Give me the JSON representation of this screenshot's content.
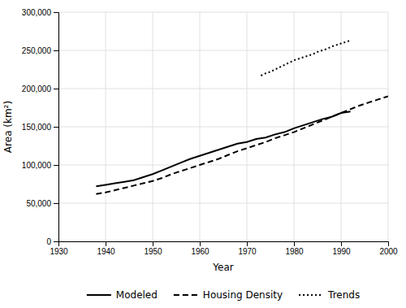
{
  "chart_data": {
    "type": "line",
    "xlabel": "Year",
    "ylabel": "Area (km²)",
    "series": [
      {
        "name": "Modeled",
        "color": "#000000",
        "line_style": "solid",
        "x": [
          1938,
          1940,
          1942,
          1944,
          1946,
          1948,
          1950,
          1952,
          1954,
          1956,
          1958,
          1960,
          1962,
          1964,
          1966,
          1968,
          1970,
          1972,
          1974,
          1976,
          1978,
          1980,
          1982,
          1984,
          1986,
          1988,
          1990,
          1992
        ],
        "values": [
          72000,
          74000,
          76000,
          78000,
          80000,
          84000,
          88000,
          93000,
          98000,
          103000,
          108000,
          112000,
          116000,
          120000,
          124000,
          128000,
          130000,
          134000,
          136000,
          140000,
          143000,
          148000,
          152000,
          156000,
          160000,
          163000,
          168000,
          170000
        ]
      },
      {
        "name": "Housing Density",
        "color": "#000000",
        "line_style": "dashed",
        "x": [
          1938,
          1940,
          1942,
          1944,
          1946,
          1948,
          1950,
          1952,
          1954,
          1956,
          1958,
          1960,
          1962,
          1964,
          1966,
          1968,
          1970,
          1972,
          1974,
          1976,
          1978,
          1980,
          1982,
          1984,
          1986,
          1988,
          1990,
          1992,
          1994,
          1996,
          1998,
          2000
        ],
        "values": [
          62000,
          64000,
          67000,
          70000,
          73000,
          76000,
          79000,
          83000,
          88000,
          92000,
          96000,
          100000,
          104000,
          108000,
          113000,
          118000,
          122000,
          126000,
          130000,
          135000,
          139000,
          143000,
          148000,
          153000,
          158000,
          163000,
          168000,
          173000,
          178000,
          182000,
          186000,
          190000
        ]
      },
      {
        "name": "Trends",
        "color": "#000000",
        "line_style": "dotted",
        "x": [
          1973,
          1974,
          1975,
          1976,
          1977,
          1978,
          1979,
          1980,
          1981,
          1982,
          1983,
          1984,
          1985,
          1986,
          1987,
          1988,
          1989,
          1990,
          1991,
          1992
        ],
        "values": [
          217000,
          220000,
          222000,
          225000,
          228000,
          231000,
          234000,
          237000,
          239000,
          241000,
          243000,
          245000,
          248000,
          250000,
          252000,
          255000,
          257000,
          259000,
          261000,
          263000
        ]
      }
    ],
    "xlim": [
      1930,
      2000
    ],
    "ylim": [
      0,
      300000
    ],
    "xticks": [
      1930,
      1940,
      1950,
      1960,
      1970,
      1980,
      1990,
      2000
    ],
    "yticks": [
      0,
      {
        "value": 50000,
        "label": "50,000"
      },
      {
        "value": 100000,
        "label": "100,000"
      },
      {
        "value": 150000,
        "label": "150,000"
      },
      {
        "value": 200000,
        "label": "200,000"
      },
      {
        "value": 250000,
        "label": "250,000"
      },
      {
        "value": 300000,
        "label": "300,000"
      }
    ],
    "grid": true,
    "legend": "bottom"
  }
}
